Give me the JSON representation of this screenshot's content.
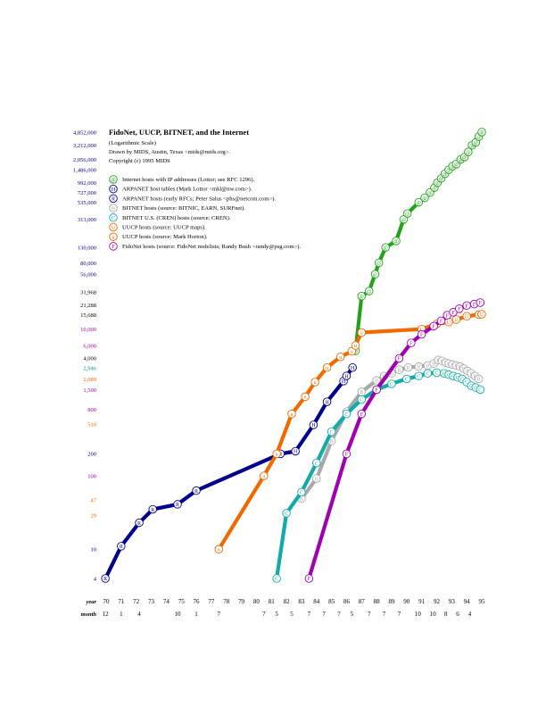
{
  "chart_data": {
    "type": "line",
    "title": "FidoNet, UUCP, BITNET, and the Internet",
    "subtitle_lines": [
      "(Logarithmic Scale)",
      "Drawn by MIDS, Austin, Texas <mids@mids.org>.",
      "Copyright (c) 1995 MIDS"
    ],
    "y_scale": "log",
    "y_range": [
      4,
      4852000
    ],
    "x_range": [
      1970,
      1995
    ],
    "grid": false,
    "legend_position": "top-left",
    "yticks": [
      {
        "label": "4,852,000",
        "value": 4852000,
        "color": "#00008b"
      },
      {
        "label": "3,212,000",
        "value": 3212000,
        "color": "#00008b"
      },
      {
        "label": "2,056,000",
        "value": 2056000,
        "color": "#00008b"
      },
      {
        "label": "1,486,000",
        "value": 1486000,
        "color": "#00008b"
      },
      {
        "label": "992,000",
        "value": 992000,
        "color": "#00008b"
      },
      {
        "label": "727,000",
        "value": 727000,
        "color": "#00008b"
      },
      {
        "label": "535,000",
        "value": 535000,
        "color": "#00008b"
      },
      {
        "label": "313,000",
        "value": 313000,
        "color": "#00008b"
      },
      {
        "label": "130,000",
        "value": 130000,
        "color": "#00008b"
      },
      {
        "label": "80,000",
        "value": 80000,
        "color": "#00008b"
      },
      {
        "label": "56,000",
        "value": 56000,
        "color": "#00008b"
      },
      {
        "label": "31,968",
        "value": 31968,
        "color": "#000000"
      },
      {
        "label": "21,288",
        "value": 21288,
        "color": "#000000"
      },
      {
        "label": "15,688",
        "value": 15688,
        "color": "#000000"
      },
      {
        "label": "10,000",
        "value": 10000,
        "color": "#990099"
      },
      {
        "label": "6,000",
        "value": 6000,
        "color": "#990099"
      },
      {
        "label": "4,000",
        "value": 4000,
        "color": "#000000"
      },
      {
        "label": "2,946",
        "value": 2946,
        "color": "#009999"
      },
      {
        "label": "2,089",
        "value": 2089,
        "color": "#e86a00"
      },
      {
        "label": "1,500",
        "value": 1500,
        "color": "#990099"
      },
      {
        "label": "800",
        "value": 800,
        "color": "#990099"
      },
      {
        "label": "510",
        "value": 510,
        "color": "#e86a00"
      },
      {
        "label": "200",
        "value": 200,
        "color": "#00008b"
      },
      {
        "label": "100",
        "value": 100,
        "color": "#990099"
      },
      {
        "label": "47",
        "value": 47,
        "color": "#e86a00"
      },
      {
        "label": "29",
        "value": 29,
        "color": "#e86a00"
      },
      {
        "label": "10",
        "value": 10,
        "color": "#00008b"
      },
      {
        "label": "4",
        "value": 4,
        "color": "#00008b"
      }
    ],
    "xaxis_year_label": "year",
    "xaxis_month_label": "month",
    "xticks": [
      {
        "label": "70",
        "value": 1970
      },
      {
        "label": "71",
        "value": 1971
      },
      {
        "label": "72",
        "value": 1972
      },
      {
        "label": "73",
        "value": 1973
      },
      {
        "label": "74",
        "value": 1974
      },
      {
        "label": "75",
        "value": 1975
      },
      {
        "label": "76",
        "value": 1976
      },
      {
        "label": "77",
        "value": 1977
      },
      {
        "label": "78",
        "value": 1978
      },
      {
        "label": "79",
        "value": 1979
      },
      {
        "label": "80",
        "value": 1980
      },
      {
        "label": "81",
        "value": 1981
      },
      {
        "label": "82",
        "value": 1982
      },
      {
        "label": "83",
        "value": 1983
      },
      {
        "label": "84",
        "value": 1984
      },
      {
        "label": "85",
        "value": 1985
      },
      {
        "label": "86",
        "value": 1986
      },
      {
        "label": "87",
        "value": 1987
      },
      {
        "label": "88",
        "value": 1988
      },
      {
        "label": "89",
        "value": 1989
      },
      {
        "label": "90",
        "value": 1990
      },
      {
        "label": "91",
        "value": 1991
      },
      {
        "label": "92",
        "value": 1992
      },
      {
        "label": "93",
        "value": 1993
      },
      {
        "label": "94",
        "value": 1994
      },
      {
        "label": "95",
        "value": 1995
      }
    ],
    "month_labels": [
      {
        "label": "12",
        "value": 1969.95
      },
      {
        "label": "1",
        "value": 1971.0
      },
      {
        "label": "4",
        "value": 1972.2
      },
      {
        "label": "10",
        "value": 1974.75
      },
      {
        "label": "1",
        "value": 1976.0
      },
      {
        "label": "7",
        "value": 1977.5
      },
      {
        "label": "7",
        "value": 1980.5
      },
      {
        "label": "5",
        "value": 1981.35
      },
      {
        "label": "5",
        "value": 1982.35
      },
      {
        "label": "7",
        "value": 1983.5
      },
      {
        "label": "7",
        "value": 1984.5
      },
      {
        "label": "7",
        "value": 1985.5
      },
      {
        "label": "5",
        "value": 1986.35
      },
      {
        "label": "7",
        "value": 1987.5
      },
      {
        "label": "7",
        "value": 1988.5
      },
      {
        "label": "7",
        "value": 1989.5
      },
      {
        "label": "10",
        "value": 1990.75
      },
      {
        "label": "10",
        "value": 1991.75
      },
      {
        "label": "8",
        "value": 1992.6
      },
      {
        "label": "6",
        "value": 1993.4
      },
      {
        "label": "4",
        "value": 1994.2
      }
    ],
    "series": [
      {
        "name": "Internet hosts with IP addresses (Lottor; see RFC 1296).",
        "symbol": "@",
        "color": "#22a11a",
        "points": [
          [
            1986.6,
            5089
          ],
          [
            1987.0,
            28174
          ],
          [
            1987.5,
            33000
          ],
          [
            1987.9,
            56000
          ],
          [
            1988.15,
            80000
          ],
          [
            1988.6,
            130000
          ],
          [
            1989.3,
            159000
          ],
          [
            1989.8,
            313000
          ],
          [
            1990.05,
            376000
          ],
          [
            1990.8,
            535000
          ],
          [
            1991.2,
            617000
          ],
          [
            1991.55,
            727000
          ],
          [
            1991.85,
            850000
          ],
          [
            1992.05,
            992000
          ],
          [
            1992.3,
            1136000
          ],
          [
            1992.55,
            1313000
          ],
          [
            1992.8,
            1486000
          ],
          [
            1993.05,
            1660000
          ],
          [
            1993.3,
            1776000
          ],
          [
            1993.6,
            2056000
          ],
          [
            1993.85,
            2217000
          ],
          [
            1994.1,
            2600000
          ],
          [
            1994.35,
            3212000
          ],
          [
            1994.6,
            3500000
          ],
          [
            1994.8,
            4200000
          ],
          [
            1995.0,
            4852000
          ]
        ]
      },
      {
        "name": "ARPANET host tables (Mark Lottor <mkl@nw.com>).",
        "symbol": "H",
        "color": "#00008b",
        "points": [
          [
            1981.6,
            200
          ],
          [
            1982.6,
            217
          ],
          [
            1983.8,
            496
          ],
          [
            1984.7,
            1024
          ],
          [
            1985.8,
            1961
          ],
          [
            1986.0,
            2308
          ],
          [
            1986.4,
            3000
          ]
        ]
      },
      {
        "name": "ARPANET hosts (early RFCs; Peter Salus <phs@netcom.com>).",
        "symbol": "R",
        "color": "#00008b",
        "points": [
          [
            1969.95,
            4
          ],
          [
            1971.0,
            11
          ],
          [
            1972.2,
            23
          ],
          [
            1973.1,
            35
          ],
          [
            1974.75,
            41
          ],
          [
            1976.0,
            63
          ],
          [
            1981.6,
            200
          ]
        ]
      },
      {
        "name": "BITNET hosts (source: BITNIC, EARN, SURFnet).",
        "symbol": "B",
        "color": "#a9a9a9",
        "points": [
          [
            1983.0,
            49
          ],
          [
            1984.0,
            92
          ],
          [
            1985.0,
            300
          ],
          [
            1986.0,
            750
          ],
          [
            1987.0,
            1400
          ],
          [
            1988.0,
            2000
          ],
          [
            1988.5,
            2300
          ],
          [
            1989.0,
            2500
          ],
          [
            1989.5,
            2800
          ],
          [
            1990.1,
            3000
          ],
          [
            1990.8,
            3100
          ],
          [
            1991.4,
            3200
          ],
          [
            1991.8,
            3400
          ],
          [
            1992.1,
            3800
          ],
          [
            1992.35,
            3700
          ],
          [
            1992.6,
            3500
          ],
          [
            1992.8,
            3400
          ],
          [
            1993.05,
            3300
          ],
          [
            1993.3,
            3200
          ],
          [
            1993.55,
            3100
          ],
          [
            1993.8,
            2900
          ],
          [
            1994.05,
            2700
          ],
          [
            1994.3,
            2500
          ],
          [
            1994.55,
            2300
          ],
          [
            1994.8,
            2100
          ]
        ]
      },
      {
        "name": "BITNET U.S. (CREN) hosts (source: CREN).",
        "symbol": "C",
        "color": "#12aaaa",
        "points": [
          [
            1981.35,
            4
          ],
          [
            1982.0,
            31
          ],
          [
            1983.0,
            60
          ],
          [
            1984.0,
            150
          ],
          [
            1985.0,
            400
          ],
          [
            1986.0,
            700
          ],
          [
            1987.0,
            1100
          ],
          [
            1988.0,
            1500
          ],
          [
            1989.0,
            1800
          ],
          [
            1990.0,
            2100
          ],
          [
            1990.8,
            2300
          ],
          [
            1991.4,
            2500
          ],
          [
            1992.0,
            2550
          ],
          [
            1992.5,
            2500
          ],
          [
            1992.8,
            2400
          ],
          [
            1993.1,
            2300
          ],
          [
            1993.4,
            2200
          ],
          [
            1993.7,
            2100
          ],
          [
            1994.0,
            1900
          ],
          [
            1994.3,
            1700
          ],
          [
            1994.6,
            1600
          ],
          [
            1994.9,
            1500
          ]
        ]
      },
      {
        "name": "UUCP hosts (source: UUCP maps).",
        "symbol": "U",
        "color": "#f06a00",
        "points": [
          [
            1987.0,
            9000
          ],
          [
            1991.0,
            10000
          ],
          [
            1992.0,
            11800
          ],
          [
            1992.8,
            12500
          ],
          [
            1993.3,
            13500
          ],
          [
            1994.0,
            15000
          ],
          [
            1994.8,
            15800
          ],
          [
            1995.0,
            16000
          ]
        ]
      },
      {
        "name": "UUCP hosts (source: Mark Horton).",
        "symbol": "u",
        "color": "#f06a00",
        "points": [
          [
            1977.5,
            10
          ],
          [
            1980.5,
            100
          ],
          [
            1981.35,
            200
          ],
          [
            1982.35,
            700
          ],
          [
            1983.25,
            1200
          ],
          [
            1983.9,
            1900
          ],
          [
            1984.7,
            3000
          ],
          [
            1985.6,
            4200
          ],
          [
            1986.35,
            5000
          ],
          [
            1986.6,
            6000
          ],
          [
            1987.0,
            9000
          ]
        ]
      },
      {
        "name": "FidoNet hosts (source: FidoNet nodelists; Randy Bush <randy@psg.com>).",
        "symbol": "F",
        "color": "#a000b0",
        "points": [
          [
            1983.5,
            4
          ],
          [
            1986.0,
            200
          ],
          [
            1987.0,
            700
          ],
          [
            1988.0,
            1500
          ],
          [
            1989.5,
            4000
          ],
          [
            1990.3,
            6500
          ],
          [
            1991.0,
            8500
          ],
          [
            1991.8,
            11000
          ],
          [
            1992.3,
            13000
          ],
          [
            1992.7,
            15500
          ],
          [
            1993.1,
            17000
          ],
          [
            1993.5,
            19000
          ],
          [
            1994.0,
            21000
          ],
          [
            1994.5,
            22000
          ],
          [
            1994.9,
            23000
          ]
        ]
      }
    ]
  }
}
